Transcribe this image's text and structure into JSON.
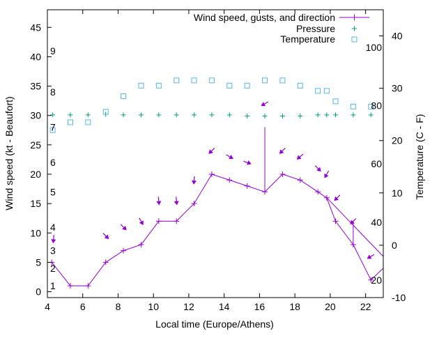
{
  "chart_data": {
    "type": "line",
    "legend": {
      "placement": "top-right",
      "entries": [
        "Wind speed, gusts, and direction",
        "Pressure",
        "Temperature"
      ]
    },
    "xlabel": "Local time (Europe/Athens)",
    "ylabel": "Wind speed (kt - Beaufort)",
    "y2label": "Temperature (C - F)",
    "xlim": [
      4,
      23
    ],
    "ylim": [
      -1,
      48
    ],
    "y2lim": [
      -10,
      45
    ],
    "xticks": [
      "4",
      "6",
      "8",
      "10",
      "12",
      "14",
      "16",
      "18",
      "20",
      "22"
    ],
    "yticks": [
      "0",
      "5",
      "10",
      "15",
      "20",
      "25",
      "30",
      "35",
      "40",
      "45"
    ],
    "y2ticks": [
      "-10",
      "0",
      "10",
      "20",
      "30",
      "40"
    ],
    "beaufort_labels": [
      {
        "label": "1",
        "y": 1
      },
      {
        "label": "2",
        "y": 4
      },
      {
        "label": "3",
        "y": 7
      },
      {
        "label": "4",
        "y": 11
      },
      {
        "label": "5",
        "y": 17
      },
      {
        "label": "6",
        "y": 22
      },
      {
        "label": "7",
        "y": 28
      },
      {
        "label": "8",
        "y": 34
      },
      {
        "label": "9",
        "y": 41
      }
    ],
    "fahrenheit_labels": [
      {
        "label": "20",
        "y2": -6.7
      },
      {
        "label": "40",
        "y2": 4.4
      },
      {
        "label": "60",
        "y2": 15.6
      },
      {
        "label": "80",
        "y2": 26.7
      },
      {
        "label": "100",
        "y2": 37.8
      }
    ],
    "colors": {
      "wind": "#9400d3",
      "pressure": "#009e73",
      "temperature": "#56b4e9",
      "axis": "#000000"
    },
    "wind_speed": {
      "x": [
        4.25,
        5.3,
        6.3,
        7.3,
        8.3,
        9.3,
        10.3,
        11.3,
        12.3,
        13.3,
        14.3,
        15.3,
        16.3,
        17.3,
        18.3,
        19.3,
        19.8,
        20.3,
        21.3,
        22.3,
        23.0
      ],
      "y": [
        5,
        1,
        1,
        5,
        7,
        8,
        12,
        12,
        15,
        20,
        19,
        18,
        17,
        20,
        19,
        17,
        16,
        12,
        8,
        2,
        4
      ]
    },
    "wind_gusts": [
      {
        "x": 16.3,
        "y": 28
      },
      {
        "x": 19.8,
        "y": 16
      },
      {
        "x": 21.3,
        "y": 12
      },
      {
        "x": 22.3,
        "y": 2
      }
    ],
    "gust_trend": {
      "x": [
        19.8,
        23.0
      ],
      "y": [
        16,
        6
      ]
    },
    "wind_direction_arrows": [
      {
        "x": 4.35,
        "y": 9,
        "angle": 95
      },
      {
        "x": 7.3,
        "y": 9.5,
        "angle": 45
      },
      {
        "x": 8.3,
        "y": 11,
        "angle": 45
      },
      {
        "x": 9.3,
        "y": 12,
        "angle": 60
      },
      {
        "x": 10.3,
        "y": 15.5,
        "angle": 85
      },
      {
        "x": 11.3,
        "y": 15.5,
        "angle": 85
      },
      {
        "x": 12.3,
        "y": 19,
        "angle": 95
      },
      {
        "x": 13.3,
        "y": 24,
        "angle": 135
      },
      {
        "x": 14.3,
        "y": 23,
        "angle": 30
      },
      {
        "x": 15.3,
        "y": 22,
        "angle": 20
      },
      {
        "x": 16.3,
        "y": 32,
        "angle": 150
      },
      {
        "x": 17.3,
        "y": 24,
        "angle": 135
      },
      {
        "x": 18.3,
        "y": 23,
        "angle": 140
      },
      {
        "x": 19.3,
        "y": 21,
        "angle": 45
      },
      {
        "x": 19.8,
        "y": 20,
        "angle": 120
      },
      {
        "x": 20.4,
        "y": 16,
        "angle": 135
      },
      {
        "x": 21.3,
        "y": 12,
        "angle": 135
      },
      {
        "x": 22.3,
        "y": 6,
        "angle": 150
      }
    ],
    "pressure": {
      "x": [
        4.3,
        5.3,
        6.3,
        7.3,
        8.3,
        9.3,
        10.3,
        11.3,
        12.3,
        13.3,
        14.3,
        15.3,
        16.3,
        17.3,
        18.3,
        19.3,
        19.8,
        20.3,
        21.3,
        22.3
      ],
      "y": [
        30.1,
        30.1,
        30.1,
        30.2,
        30.1,
        30.1,
        30.1,
        30.1,
        30.1,
        30.1,
        30.1,
        29.9,
        29.9,
        29.9,
        29.9,
        30.1,
        30.1,
        30.1,
        30.1,
        30.1
      ]
    },
    "temperature": {
      "x": [
        4.3,
        5.3,
        6.3,
        7.3,
        8.3,
        9.3,
        10.3,
        11.3,
        12.3,
        13.3,
        14.3,
        15.3,
        16.3,
        17.3,
        18.3,
        19.3,
        19.8,
        20.3,
        21.3,
        22.3
      ],
      "y": [
        22,
        23.5,
        23.5,
        25.5,
        28.5,
        30.5,
        30.5,
        31.5,
        31.5,
        31.5,
        30.5,
        30.5,
        31.5,
        31.5,
        30.5,
        29.5,
        29.5,
        27.5,
        26.5,
        26.5
      ]
    }
  }
}
